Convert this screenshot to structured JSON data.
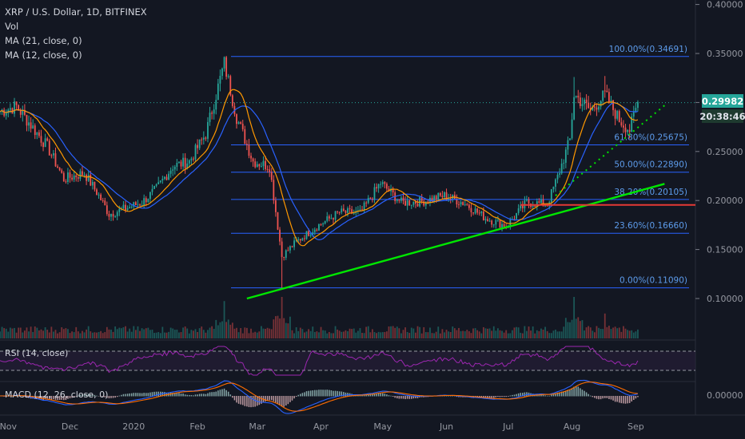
{
  "header": {
    "symbol_line": "XRP / U.S. Dollar, 1D, BITFINEX",
    "vol_label": "Vol",
    "ma21_label": "MA (21, close, 0)",
    "ma12_label": "MA (12, close, 0)"
  },
  "indicators": {
    "rsi_label": "RSI (14, close)",
    "macd_label": "MACD (12, 26, close, 0)",
    "macd_axis_value": "0.00000"
  },
  "price_axis": {
    "ticks": [
      "0.40000",
      "0.35000",
      "0.30000",
      "0.25000",
      "0.20000",
      "0.15000",
      "0.10000"
    ],
    "current_price": "0.29982",
    "countdown": "20:38:46"
  },
  "time_axis": {
    "ticks": [
      "Nov",
      "Dec",
      "2020",
      "Feb",
      "Mar",
      "Apr",
      "May",
      "Jun",
      "Jul",
      "Aug",
      "Sep"
    ]
  },
  "fib_levels": [
    {
      "label": "100.00%(0.34691)",
      "value": 0.34691
    },
    {
      "label": "61.80%(0.25675)",
      "value": 0.25675
    },
    {
      "label": "50.00%(0.22890)",
      "value": 0.2289
    },
    {
      "label": "38.20%(0.20105)",
      "value": 0.20105
    },
    {
      "label": "23.60%(0.16660)",
      "value": 0.1666
    },
    {
      "label": "0.00%(0.11090)",
      "value": 0.1109
    }
  ],
  "colors": {
    "background": "#131722",
    "up_candle": "#26a69a",
    "down_candle": "#ef5350",
    "ma21": "#2962ff",
    "ma12": "#ff9800",
    "fib_line": "#2962ff",
    "trendline": "#00e600",
    "support_line": "#e53935",
    "rsi_line": "#9c27b0",
    "current_price_bg": "#26a69a",
    "countdown_bg": "#1e3a2f"
  },
  "chart_data": {
    "type": "candlestick",
    "x_range": [
      "2019-10-28",
      "2020-09-30"
    ],
    "y_range": [
      0.06,
      0.4
    ],
    "close_path": [
      [
        "2019-10-28",
        0.291
      ],
      [
        "2019-11-05",
        0.296
      ],
      [
        "2019-11-12",
        0.277
      ],
      [
        "2019-11-20",
        0.255
      ],
      [
        "2019-11-28",
        0.222
      ],
      [
        "2019-12-08",
        0.228
      ],
      [
        "2019-12-15",
        0.205
      ],
      [
        "2019-12-20",
        0.186
      ],
      [
        "2019-12-28",
        0.192
      ],
      [
        "2020-01-05",
        0.198
      ],
      [
        "2020-01-12",
        0.212
      ],
      [
        "2020-01-20",
        0.235
      ],
      [
        "2020-01-28",
        0.24
      ],
      [
        "2020-02-05",
        0.268
      ],
      [
        "2020-02-14",
        0.34
      ],
      [
        "2020-02-20",
        0.285
      ],
      [
        "2020-02-28",
        0.24
      ],
      [
        "2020-03-07",
        0.235
      ],
      [
        "2020-03-13",
        0.143
      ],
      [
        "2020-03-20",
        0.158
      ],
      [
        "2020-03-31",
        0.175
      ],
      [
        "2020-04-10",
        0.188
      ],
      [
        "2020-04-20",
        0.187
      ],
      [
        "2020-04-30",
        0.218
      ],
      [
        "2020-05-10",
        0.198
      ],
      [
        "2020-05-20",
        0.199
      ],
      [
        "2020-05-31",
        0.205
      ],
      [
        "2020-06-10",
        0.197
      ],
      [
        "2020-06-20",
        0.182
      ],
      [
        "2020-06-30",
        0.174
      ],
      [
        "2020-07-10",
        0.198
      ],
      [
        "2020-07-20",
        0.196
      ],
      [
        "2020-07-25",
        0.224
      ],
      [
        "2020-07-31",
        0.262
      ],
      [
        "2020-08-02",
        0.308
      ],
      [
        "2020-08-10",
        0.292
      ],
      [
        "2020-08-17",
        0.308
      ],
      [
        "2020-08-24",
        0.282
      ],
      [
        "2020-08-29",
        0.272
      ],
      [
        "2020-09-02",
        0.29982
      ]
    ],
    "volume_spikes": [
      [
        "2020-02-14",
        0.9
      ],
      [
        "2020-03-13",
        1.0
      ],
      [
        "2020-08-02",
        1.0
      ],
      [
        "2020-08-17",
        0.6
      ]
    ],
    "overlays": {
      "trendline": {
        "from": [
          "2020-02-25",
          0.1
        ],
        "to": [
          "2020-09-15",
          0.217
        ]
      },
      "dotted_trendline": {
        "from": [
          "2020-07-24",
          0.205
        ],
        "to": [
          "2020-09-15",
          0.297
        ]
      },
      "support": {
        "value": 0.1955,
        "from": "2020-07-07"
      }
    }
  }
}
